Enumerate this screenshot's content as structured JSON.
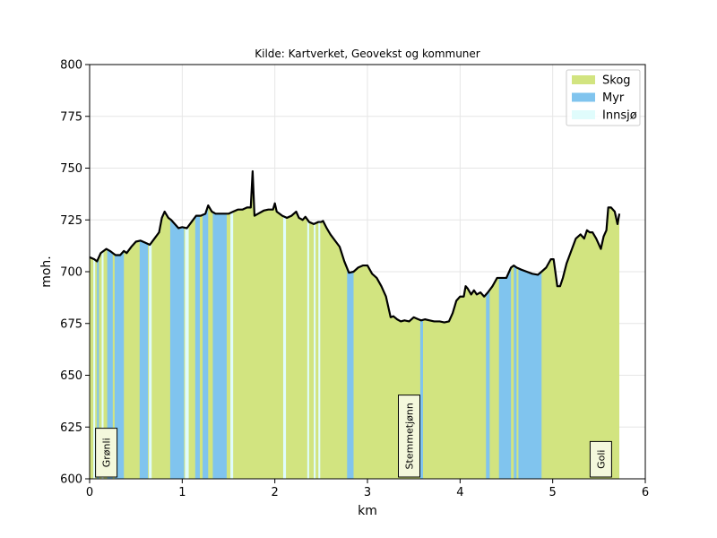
{
  "chart_data": {
    "type": "area",
    "title": "Kilde: Kartverket, Geovekst og kommuner",
    "xlabel": "km",
    "ylabel": "moh.",
    "xlim": [
      0,
      6
    ],
    "ylim": [
      600,
      800
    ],
    "xticks": [
      0,
      1,
      2,
      3,
      4,
      5,
      6
    ],
    "yticks": [
      600,
      625,
      650,
      675,
      700,
      725,
      750,
      775,
      800
    ],
    "grid": true,
    "legend_position": "top-right",
    "legend": [
      {
        "label": "Skog",
        "color": "#d2e480"
      },
      {
        "label": "Myr",
        "color": "#80c4ee"
      },
      {
        "label": "Innsjø",
        "color": "#e0fcfc"
      }
    ],
    "profile": {
      "x": [
        0,
        0.05,
        0.08,
        0.12,
        0.18,
        0.22,
        0.28,
        0.33,
        0.37,
        0.4,
        0.45,
        0.5,
        0.55,
        0.6,
        0.65,
        0.7,
        0.75,
        0.78,
        0.81,
        0.85,
        0.88,
        0.92,
        0.96,
        1.0,
        1.05,
        1.1,
        1.15,
        1.2,
        1.25,
        1.28,
        1.32,
        1.36,
        1.4,
        1.45,
        1.5,
        1.55,
        1.6,
        1.65,
        1.7,
        1.74,
        1.76,
        1.78,
        1.82,
        1.88,
        1.93,
        1.98,
        2.0,
        2.02,
        2.08,
        2.13,
        2.18,
        2.23,
        2.26,
        2.3,
        2.33,
        2.37,
        2.42,
        2.47,
        2.5,
        2.52,
        2.56,
        2.6,
        2.65,
        2.7,
        2.75,
        2.8,
        2.85,
        2.9,
        2.95,
        3.0,
        3.05,
        3.1,
        3.15,
        3.2,
        3.25,
        3.28,
        3.32,
        3.36,
        3.4,
        3.45,
        3.5,
        3.55,
        3.58,
        3.62,
        3.67,
        3.72,
        3.78,
        3.83,
        3.88,
        3.92,
        3.96,
        4.0,
        4.04,
        4.06,
        4.08,
        4.12,
        4.15,
        4.18,
        4.22,
        4.26,
        4.3,
        4.35,
        4.4,
        4.45,
        4.5,
        4.55,
        4.58,
        4.61,
        4.66,
        4.72,
        4.78,
        4.84,
        4.88,
        4.93,
        4.98,
        5.01,
        5.05,
        5.08,
        5.11,
        5.15,
        5.2,
        5.25,
        5.3,
        5.34,
        5.37,
        5.4,
        5.43,
        5.47,
        5.5,
        5.52,
        5.55,
        5.58,
        5.6,
        5.63,
        5.67,
        5.7,
        5.72
      ],
      "y": [
        707,
        706,
        705,
        709,
        711,
        710,
        708,
        708,
        710,
        709,
        712,
        714.5,
        715,
        714,
        713,
        716,
        719,
        726,
        729,
        726,
        725,
        723,
        721,
        721.5,
        721,
        724,
        727,
        727,
        728,
        732,
        729,
        728,
        728,
        728,
        728,
        729,
        730,
        730,
        731,
        731,
        748.5,
        727,
        728,
        729.5,
        730,
        730,
        733,
        729,
        727,
        726,
        727,
        729,
        726,
        725,
        726.5,
        724,
        723,
        724,
        724,
        724.5,
        721,
        718,
        715,
        712,
        705,
        699.5,
        700,
        702,
        703,
        703,
        699,
        697,
        693,
        688,
        678,
        678.5,
        677,
        676,
        676.5,
        676,
        678,
        677,
        676.5,
        677,
        676.5,
        676,
        676,
        675.5,
        676,
        680,
        686,
        688,
        688,
        693,
        692,
        689,
        691,
        689,
        690,
        688,
        690,
        693,
        697,
        697,
        697,
        702,
        703,
        702,
        701,
        700,
        699,
        698.5,
        700,
        702,
        706,
        706,
        693,
        693,
        697,
        704,
        710,
        716,
        718,
        716,
        720,
        719,
        719,
        716,
        713,
        711,
        717,
        720,
        731,
        731,
        729,
        723,
        728
      ]
    },
    "myr_segments": [
      [
        0.08,
        0.1
      ],
      [
        0.19,
        0.25
      ],
      [
        0.27,
        0.37
      ],
      [
        0.54,
        0.63
      ],
      [
        0.87,
        1.02
      ],
      [
        1.14,
        1.19
      ],
      [
        1.22,
        1.28
      ],
      [
        1.33,
        1.48
      ],
      [
        2.78,
        2.85
      ],
      [
        3.57,
        3.6
      ],
      [
        4.28,
        4.32
      ],
      [
        4.42,
        4.55
      ],
      [
        4.58,
        4.61
      ],
      [
        4.63,
        4.88
      ]
    ],
    "innsjo_segments": [
      [
        0.04,
        0.06
      ],
      [
        0.13,
        0.15
      ],
      [
        0.64,
        0.67
      ],
      [
        1.03,
        1.07
      ],
      [
        1.52,
        1.55
      ],
      [
        2.09,
        2.12
      ],
      [
        2.35,
        2.37
      ],
      [
        2.42,
        2.44
      ],
      [
        2.47,
        2.49
      ]
    ],
    "place_labels": [
      {
        "name": "Grønli",
        "x": 0.18
      },
      {
        "name": "Stemmetjønn",
        "x": 3.45
      },
      {
        "name": "Goli",
        "x": 5.52
      }
    ]
  }
}
